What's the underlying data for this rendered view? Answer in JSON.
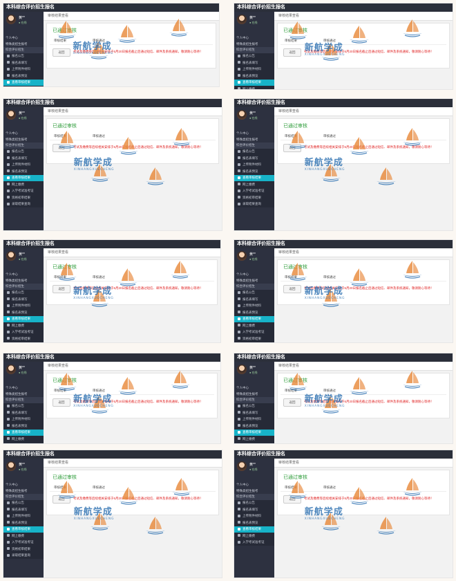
{
  "app": {
    "title": "本科综合评价招生报名",
    "hamburger_icon": "menu-icon",
    "breadcrumb": "审核结果查看"
  },
  "user": {
    "name": "黄**",
    "status": "● 在线"
  },
  "sidebar": {
    "items": [
      {
        "label": "个人中心"
      },
      {
        "label": "特殊类招生报考"
      },
      {
        "label": "综合评价招生"
      }
    ],
    "subitems": [
      {
        "label": "报名公告"
      },
      {
        "label": "报名表填写"
      },
      {
        "label": "上传附件材料"
      },
      {
        "label": "报名表预览"
      },
      {
        "label": "查看审核结果"
      },
      {
        "label": "网上缴费"
      },
      {
        "label": "入学考试准考证"
      },
      {
        "label": "资格初审结果"
      },
      {
        "label": "录取结果查询"
      }
    ]
  },
  "result": {
    "status_title": "已通过审核",
    "row_label": "审核结果",
    "row_value": "审核通过",
    "button": "返回",
    "notice": "考试及缴费等后续相关安排于5月20日报名截止后通过短信、邮件及系统通知，敬请耐心等待！"
  },
  "watermark": {
    "cn": "新航学成",
    "en": "XINHANGXUECHENG"
  },
  "colors": {
    "topbar": "#2b2f3a",
    "sidebar": "#2d3140",
    "active": "#17b3c8",
    "status": "#2e9c3a",
    "notice": "#e02424",
    "watermark": "#2a6fb0",
    "sail": "#e88a3c"
  }
}
